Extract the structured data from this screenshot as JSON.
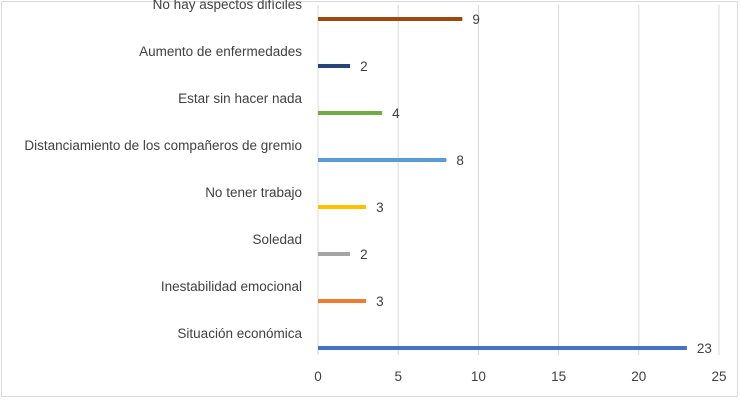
{
  "chart_data": {
    "type": "bar",
    "orientation": "horizontal",
    "categories": [
      "No hay aspectos difíciles",
      "Aumento de enfermedades",
      "Estar sin hacer nada",
      "Distanciamiento de los compañeros de gremio",
      "No tener trabajo",
      "Soledad",
      "Inestabilidad emocional",
      "Situación económica"
    ],
    "values": [
      9,
      2,
      4,
      8,
      3,
      2,
      3,
      23
    ],
    "value_labels": [
      "9",
      "2",
      "4",
      "8",
      "3",
      "2",
      "3",
      "23"
    ],
    "colors": [
      "#9e480e",
      "#264478",
      "#70ad47",
      "#5b9bd5",
      "#ffc000",
      "#a5a5a5",
      "#ed7d31",
      "#4472c4"
    ],
    "xlim": [
      0,
      25
    ],
    "ticks": [
      "0",
      "5",
      "10",
      "15",
      "20",
      "25"
    ],
    "tick_values": [
      0,
      5,
      10,
      15,
      20,
      25
    ],
    "grid": "vertical",
    "title": "",
    "xlabel": "",
    "ylabel": ""
  }
}
